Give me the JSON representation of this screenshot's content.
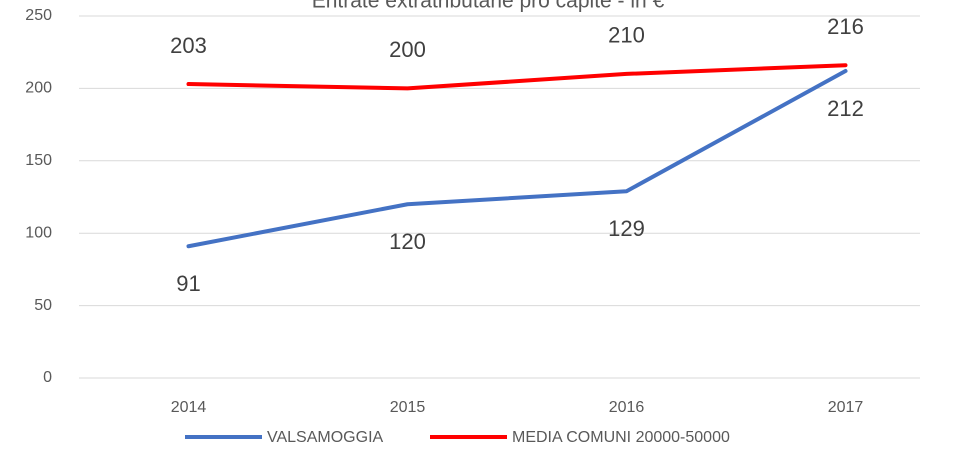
{
  "chart_data": {
    "type": "line",
    "title": "Entrate extratributarie  pro capite - in €",
    "categories": [
      "2014",
      "2015",
      "2016",
      "2017"
    ],
    "series": [
      {
        "name": "VALSAMOGGIA",
        "color": "#4472c4",
        "values": [
          91,
          120,
          129,
          212
        ]
      },
      {
        "name": "MEDIA COMUNI 20000-50000",
        "color": "#ff0000",
        "values": [
          203,
          200,
          210,
          216
        ]
      }
    ],
    "ylim": [
      0,
      250
    ],
    "yticks": [
      0,
      50,
      100,
      150,
      200,
      250
    ],
    "grid": true,
    "legend": "bottom"
  }
}
